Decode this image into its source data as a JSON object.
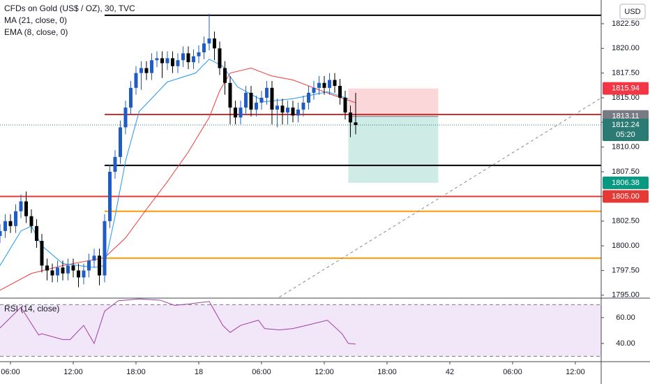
{
  "chart_data": {
    "type": "candlestick",
    "title": "CFDs on Gold (US$ / OZ), 30, TVC",
    "currency": "USD",
    "up_color": "#1f5cc4",
    "down_color": "#000000",
    "x": [
      -1,
      -0.5,
      0,
      0.5,
      1,
      1.5,
      2,
      2.5,
      3,
      3.5,
      4,
      4.5,
      5,
      5.5,
      6,
      6.5,
      7,
      7.5,
      8,
      8.5,
      9,
      9.5,
      10,
      10.5,
      11,
      11.5,
      12,
      12.5,
      13,
      13.5,
      14,
      14.5,
      15,
      15.5,
      16,
      16.5,
      17,
      17.5,
      18,
      18.5,
      19,
      19.5,
      20,
      20.5,
      21,
      21.5,
      22,
      22.5,
      23,
      23.5,
      24,
      24.5,
      25,
      25.5,
      26,
      26.5,
      27,
      27.5,
      28,
      28.5,
      29,
      29.5,
      30,
      30.5,
      31,
      31.5,
      32,
      32.5,
      33
    ],
    "open": [
      1801.0,
      1801.5,
      1802.5,
      1802.0,
      1803.5,
      1804.5,
      1803.0,
      1802.0,
      1800.5,
      1798.0,
      1797.5,
      1797.0,
      1797.8,
      1797.2,
      1798.0,
      1797.5,
      1796.8,
      1797.5,
      1798.5,
      1799.0,
      1797.0,
      1802.5,
      1807.5,
      1809.0,
      1812.0,
      1814.0,
      1816.0,
      1817.5,
      1818.0,
      1817.5,
      1818.8,
      1819.0,
      1818.5,
      1819.0,
      1818.2,
      1818.8,
      1819.5,
      1818.6,
      1819.2,
      1819.6,
      1820.5,
      1821.0,
      1820.0,
      1818.0,
      1816.5,
      1814.0,
      1813.0,
      1814.0,
      1815.5,
      1813.8,
      1814.5,
      1815.0,
      1816.0,
      1813.8,
      1814.2,
      1813.5,
      1814.0,
      1813.2,
      1813.8,
      1814.5,
      1815.5,
      1816.0,
      1816.5,
      1816.0,
      1816.8,
      1816.2,
      1815.0,
      1813.5,
      1812.5
    ],
    "high": [
      1802.2,
      1803.2,
      1803.2,
      1804.2,
      1805.2,
      1805.5,
      1803.7,
      1802.7,
      1801.2,
      1798.7,
      1798.2,
      1798.5,
      1798.5,
      1798.7,
      1798.7,
      1798.2,
      1798.2,
      1799.2,
      1799.7,
      1799.7,
      1803.2,
      1808.2,
      1809.7,
      1812.7,
      1814.7,
      1816.7,
      1818.2,
      1818.7,
      1818.7,
      1819.5,
      1819.7,
      1819.7,
      1819.7,
      1819.7,
      1819.5,
      1820.2,
      1820.2,
      1819.9,
      1820.3,
      1821.2,
      1823.5,
      1821.7,
      1820.7,
      1818.7,
      1817.2,
      1814.7,
      1814.7,
      1816.2,
      1816.2,
      1815.2,
      1815.7,
      1816.7,
      1816.7,
      1814.9,
      1814.9,
      1814.7,
      1814.7,
      1814.5,
      1815.2,
      1816.2,
      1816.7,
      1817.2,
      1817.2,
      1817.5,
      1817.5,
      1816.9,
      1815.7,
      1814.2,
      1815.5
    ],
    "low": [
      1800.3,
      1800.8,
      1801.3,
      1801.3,
      1802.8,
      1802.3,
      1801.3,
      1799.8,
      1797.3,
      1796.5,
      1796.3,
      1796.3,
      1796.5,
      1796.5,
      1796.8,
      1795.8,
      1796.1,
      1796.8,
      1797.8,
      1796.0,
      1796.3,
      1801.8,
      1806.8,
      1808.3,
      1811.3,
      1813.3,
      1815.3,
      1815.8,
      1816.8,
      1816.8,
      1818.1,
      1817.0,
      1817.8,
      1817.5,
      1817.5,
      1818.1,
      1817.9,
      1817.9,
      1818.5,
      1818.9,
      1819.8,
      1818.8,
      1817.3,
      1815.3,
      1812.3,
      1812.3,
      1812.3,
      1813.3,
      1813.1,
      1813.1,
      1813.8,
      1814.3,
      1812.3,
      1812.0,
      1812.3,
      1812.3,
      1812.5,
      1812.5,
      1813.1,
      1813.8,
      1814.8,
      1815.3,
      1815.3,
      1815.3,
      1815.5,
      1814.3,
      1812.8,
      1811.0,
      1811.3
    ],
    "close": [
      1801.5,
      1802.5,
      1802.0,
      1803.5,
      1804.5,
      1803.0,
      1802.0,
      1800.5,
      1798.0,
      1797.5,
      1797.0,
      1797.8,
      1797.2,
      1798.0,
      1797.5,
      1796.8,
      1797.5,
      1798.5,
      1799.0,
      1797.0,
      1802.5,
      1807.5,
      1809.0,
      1812.0,
      1814.0,
      1816.0,
      1817.5,
      1818.0,
      1817.5,
      1818.8,
      1819.0,
      1818.5,
      1819.0,
      1818.2,
      1818.8,
      1819.5,
      1818.6,
      1819.2,
      1819.6,
      1820.5,
      1821.0,
      1820.0,
      1818.0,
      1816.5,
      1814.0,
      1813.0,
      1814.0,
      1815.5,
      1813.8,
      1814.5,
      1815.0,
      1816.0,
      1813.8,
      1814.2,
      1813.5,
      1814.0,
      1813.2,
      1813.8,
      1814.5,
      1815.5,
      1816.0,
      1816.5,
      1816.0,
      1816.8,
      1816.2,
      1815.0,
      1813.5,
      1812.5,
      1812.24
    ],
    "countdown": "05:20",
    "close_color": "#2b7a73",
    "series": [
      {
        "name": "MA (21, close, 0)",
        "color": "#ef3b3b",
        "x": [
          -1,
          2,
          5,
          9,
          11,
          13,
          15,
          17,
          19,
          20,
          21,
          23,
          25,
          27,
          29,
          31,
          33
        ],
        "values": [
          1795.5,
          1797.2,
          1798.0,
          1798.8,
          1800.8,
          1803.7,
          1806.5,
          1809.5,
          1813.0,
          1815.7,
          1817.5,
          1818.0,
          1817.2,
          1816.8,
          1816.0,
          1815.2,
          1814.5
        ]
      },
      {
        "name": "EMA (8, close, 0)",
        "color": "#2196f3",
        "x": [
          -1,
          1,
          2,
          3,
          5,
          8,
          9,
          10,
          11,
          12.3,
          15,
          17.7,
          19,
          20.3,
          21.7,
          24.3,
          27,
          30.3,
          32.3
        ],
        "values": [
          1798.0,
          1801.5,
          1802.0,
          1800.0,
          1798.2,
          1797.8,
          1798.0,
          1803.0,
          1808.6,
          1813.6,
          1816.6,
          1817.5,
          1818.9,
          1818.2,
          1816.1,
          1814.6,
          1814.9,
          1815.6,
          1814.9
        ]
      }
    ],
    "levels": [
      {
        "value": 1823.35,
        "from": 9,
        "color": "#000000"
      },
      {
        "value": 1813.3,
        "from": 9,
        "color": "#d32f2f"
      },
      {
        "value": 1808.15,
        "from": 9,
        "color": "#000000"
      },
      {
        "value": 1805,
        "label": "1805.00",
        "from": -1,
        "color": "#e53935"
      },
      {
        "value": 1803.5,
        "from": 9,
        "color": "#ff9800"
      },
      {
        "value": 1798.75,
        "from": 9,
        "color": "#ff9800"
      }
    ],
    "position": {
      "x": [
        32.3,
        40.9
      ],
      "stop": 1815.94,
      "entry": 1813.11,
      "target": 1806.38,
      "stop_color": "#f23645",
      "entry_color": "#787b86",
      "target_color": "#089981"
    },
    "trendline": {
      "x": [
        25.7,
        56.5
      ],
      "values": [
        1794.8,
        1815.0
      ],
      "color": "#888888"
    },
    "xlim": [
      -1,
      56.47
    ],
    "xticks": [
      {
        "value": 0,
        "label": "06:00"
      },
      {
        "value": 6,
        "label": "12:00"
      },
      {
        "value": 12,
        "label": "18:00"
      },
      18,
      {
        "value": 24,
        "label": "06:00"
      },
      {
        "value": 30,
        "label": "12:00"
      },
      {
        "value": 36,
        "label": "18:00"
      },
      42,
      {
        "value": 48,
        "label": "06:00"
      },
      {
        "value": 54,
        "label": "12:00"
      }
    ],
    "xtick_labels_override": null,
    "ylim": [
      1794.7,
      1824.9
    ],
    "yticks": [
      {
        "value": 1795,
        "label": "1795.00"
      },
      {
        "value": 1797.5,
        "label": "1797.50"
      },
      {
        "value": 1800,
        "label": "1800.00"
      },
      {
        "value": 1802.5,
        "label": "1802.50"
      },
      {
        "value": 1805,
        "label": "1805.00"
      },
      {
        "value": 1807.5,
        "label": "1807.50"
      },
      {
        "value": 1810,
        "label": "1810.00"
      },
      {
        "value": 1812.5,
        "label": "1812.50"
      },
      {
        "value": 1815,
        "label": "1815.00"
      },
      {
        "value": 1817.5,
        "label": "1817.50"
      },
      {
        "value": 1820,
        "label": "1820.00"
      },
      {
        "value": 1822.5,
        "label": "1822.50"
      }
    ],
    "rsi": {
      "name": "RSI (14, close)",
      "color": "#a13ea1",
      "band": [
        30,
        70
      ],
      "band_color": "#e9d5f5",
      "x": [
        -1,
        1,
        2.7,
        3,
        5,
        5.7,
        7,
        8,
        9,
        10.3,
        12.3,
        14.3,
        15.7,
        17,
        19,
        20.3,
        21,
        22,
        23.7,
        24.3,
        25.7,
        27,
        28.3,
        30.3,
        31.7,
        32.3,
        33
      ],
      "values": [
        52,
        68,
        46.5,
        47.5,
        43,
        43,
        54,
        40,
        65,
        73,
        74.5,
        73.5,
        69.5,
        70.5,
        72.5,
        54,
        48.5,
        54,
        58,
        51.5,
        50.5,
        51.5,
        54,
        58,
        47.5,
        40,
        39.5
      ],
      "ylim": [
        25.9,
        75.1
      ],
      "yticks": [
        {
          "value": 40,
          "label": "40.00"
        },
        {
          "value": 60,
          "label": "60.00"
        }
      ]
    }
  }
}
